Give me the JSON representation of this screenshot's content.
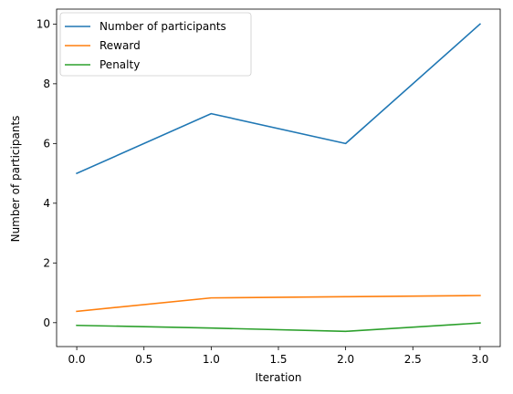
{
  "chart_data": {
    "type": "line",
    "title": "",
    "xlabel": "Iteration",
    "ylabel": "Number of participants",
    "x": [
      0,
      1,
      2,
      3
    ],
    "xlim": [
      -0.15,
      3.15
    ],
    "ylim": [
      -0.8,
      10.5
    ],
    "xticks": [
      0.0,
      0.5,
      1.0,
      1.5,
      2.0,
      2.5,
      3.0
    ],
    "xtick_labels": [
      "0.0",
      "0.5",
      "1.0",
      "1.5",
      "2.0",
      "2.5",
      "3.0"
    ],
    "yticks": [
      0,
      2,
      4,
      6,
      8,
      10
    ],
    "ytick_labels": [
      "0",
      "2",
      "4",
      "6",
      "8",
      "10"
    ],
    "grid": false,
    "legend_position": "top-left",
    "series": [
      {
        "name": "Number of participants",
        "color": "#1f77b4",
        "values": [
          5,
          7,
          6,
          10
        ]
      },
      {
        "name": "Reward",
        "color": "#ff7f0e",
        "values": [
          0.38,
          0.83,
          0.87,
          0.91
        ]
      },
      {
        "name": "Penalty",
        "color": "#2ca02c",
        "values": [
          -0.09,
          -0.18,
          -0.29,
          -0.01
        ]
      }
    ]
  }
}
